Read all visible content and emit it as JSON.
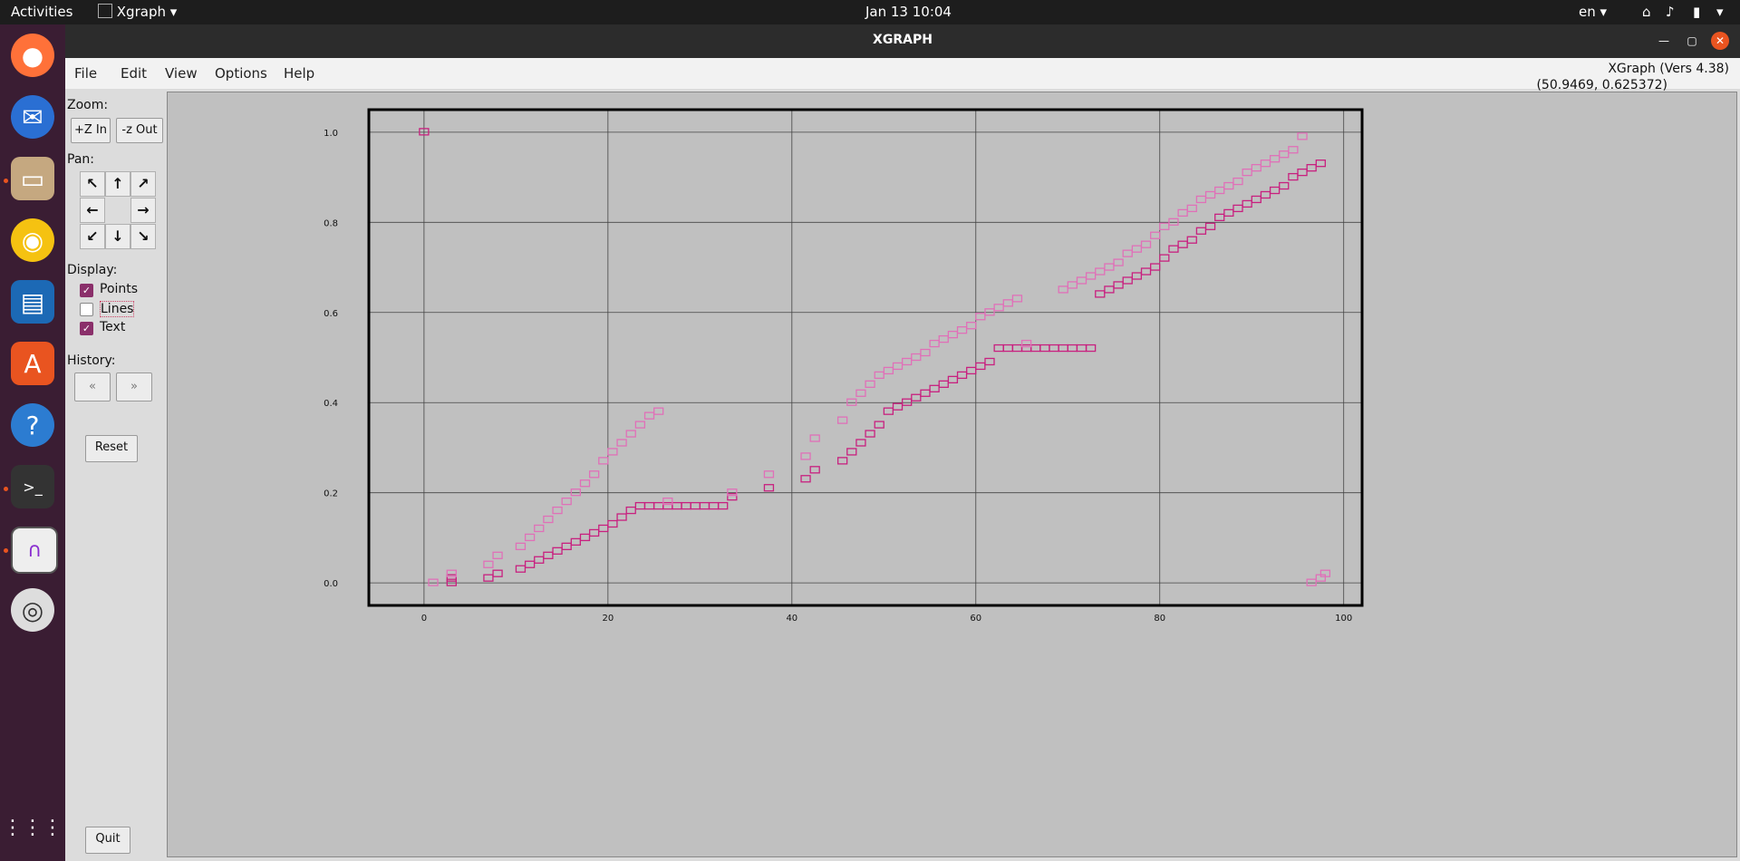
{
  "topbar": {
    "activities": "Activities",
    "app": "Xgraph",
    "datetime": "Jan 13  10:04",
    "lang": "en"
  },
  "window": {
    "title": "XGRAPH"
  },
  "menu": {
    "file": "File",
    "edit": "Edit",
    "view": "View",
    "options": "Options",
    "help": "Help"
  },
  "info": {
    "version": "XGraph (Vers 4.38)",
    "coords": "(50.9469, 0.625372)"
  },
  "sidebar": {
    "zoom_label": "Zoom:",
    "zoom_in": "+Z In",
    "zoom_out": "-z Out",
    "pan_label": "Pan:",
    "display_label": "Display:",
    "points": "Points",
    "lines": "Lines",
    "text": "Text",
    "points_checked": true,
    "lines_checked": false,
    "text_checked": true,
    "history_label": "History:",
    "reset": "Reset",
    "quit": "Quit"
  },
  "colors": {
    "series": "#d64fa6",
    "series_dark": "#c8207f"
  },
  "chart_data": {
    "type": "scatter",
    "xlim": [
      -6,
      102
    ],
    "ylim": [
      -0.05,
      1.05
    ],
    "xticks": [
      0,
      20,
      40,
      60,
      80,
      100
    ],
    "yticks": [
      "0.0",
      "0.2",
      "0.4",
      "0.6",
      "0.8",
      "1.0"
    ],
    "grid": true,
    "series": [
      {
        "color": "#c8207f",
        "points": [
          [
            0,
            1.0
          ],
          [
            3,
            0.0
          ],
          [
            3,
            0.01
          ],
          [
            7,
            0.01
          ],
          [
            8,
            0.02
          ],
          [
            10.5,
            0.03
          ],
          [
            11.5,
            0.04
          ],
          [
            12.5,
            0.05
          ],
          [
            13.5,
            0.06
          ],
          [
            14.5,
            0.07
          ],
          [
            15.5,
            0.08
          ],
          [
            16.5,
            0.09
          ],
          [
            17.5,
            0.1
          ],
          [
            18.5,
            0.11
          ],
          [
            19.5,
            0.12
          ],
          [
            20.5,
            0.13
          ],
          [
            21.5,
            0.145
          ],
          [
            22.5,
            0.16
          ],
          [
            23.5,
            0.17
          ],
          [
            24.5,
            0.17
          ],
          [
            25.5,
            0.17
          ],
          [
            26.5,
            0.17
          ],
          [
            27.5,
            0.17
          ],
          [
            28.5,
            0.17
          ],
          [
            29.5,
            0.17
          ],
          [
            30.5,
            0.17
          ],
          [
            31.5,
            0.17
          ],
          [
            32.5,
            0.17
          ],
          [
            33.5,
            0.19
          ],
          [
            37.5,
            0.21
          ],
          [
            41.5,
            0.23
          ],
          [
            42.5,
            0.25
          ],
          [
            45.5,
            0.27
          ],
          [
            46.5,
            0.29
          ],
          [
            47.5,
            0.31
          ],
          [
            48.5,
            0.33
          ],
          [
            49.5,
            0.35
          ],
          [
            50.5,
            0.38
          ],
          [
            51.5,
            0.39
          ],
          [
            52.5,
            0.4
          ],
          [
            53.5,
            0.41
          ],
          [
            54.5,
            0.42
          ],
          [
            55.5,
            0.43
          ],
          [
            56.5,
            0.44
          ],
          [
            57.5,
            0.45
          ],
          [
            58.5,
            0.46
          ],
          [
            59.5,
            0.47
          ],
          [
            60.5,
            0.48
          ],
          [
            61.5,
            0.49
          ],
          [
            62.5,
            0.52
          ],
          [
            63.5,
            0.52
          ],
          [
            64.5,
            0.52
          ],
          [
            65.5,
            0.52
          ],
          [
            66.5,
            0.52
          ],
          [
            67.5,
            0.52
          ],
          [
            68.5,
            0.52
          ],
          [
            69.5,
            0.52
          ],
          [
            70.5,
            0.52
          ],
          [
            71.5,
            0.52
          ],
          [
            72.5,
            0.52
          ],
          [
            73.5,
            0.64
          ],
          [
            74.5,
            0.65
          ],
          [
            75.5,
            0.66
          ],
          [
            76.5,
            0.67
          ],
          [
            77.5,
            0.68
          ],
          [
            78.5,
            0.69
          ],
          [
            79.5,
            0.7
          ],
          [
            80.5,
            0.72
          ],
          [
            81.5,
            0.74
          ],
          [
            82.5,
            0.75
          ],
          [
            83.5,
            0.76
          ],
          [
            84.5,
            0.78
          ],
          [
            85.5,
            0.79
          ],
          [
            86.5,
            0.81
          ],
          [
            87.5,
            0.82
          ],
          [
            88.5,
            0.83
          ],
          [
            89.5,
            0.84
          ],
          [
            90.5,
            0.85
          ],
          [
            91.5,
            0.86
          ],
          [
            92.5,
            0.87
          ],
          [
            93.5,
            0.88
          ],
          [
            94.5,
            0.9
          ],
          [
            95.5,
            0.91
          ],
          [
            96.5,
            0.92
          ],
          [
            97.5,
            0.93
          ]
        ]
      },
      {
        "color": "#e070b8",
        "points": [
          [
            1,
            0.0
          ],
          [
            3,
            0.02
          ],
          [
            7,
            0.04
          ],
          [
            8,
            0.06
          ],
          [
            10.5,
            0.08
          ],
          [
            11.5,
            0.1
          ],
          [
            12.5,
            0.12
          ],
          [
            13.5,
            0.14
          ],
          [
            14.5,
            0.16
          ],
          [
            15.5,
            0.18
          ],
          [
            16.5,
            0.2
          ],
          [
            17.5,
            0.22
          ],
          [
            18.5,
            0.24
          ],
          [
            19.5,
            0.27
          ],
          [
            20.5,
            0.29
          ],
          [
            21.5,
            0.31
          ],
          [
            22.5,
            0.33
          ],
          [
            23.5,
            0.35
          ],
          [
            24.5,
            0.37
          ],
          [
            25.5,
            0.38
          ],
          [
            26.5,
            0.18
          ],
          [
            33.5,
            0.2
          ],
          [
            37.5,
            0.24
          ],
          [
            41.5,
            0.28
          ],
          [
            42.5,
            0.32
          ],
          [
            45.5,
            0.36
          ],
          [
            46.5,
            0.4
          ],
          [
            47.5,
            0.42
          ],
          [
            48.5,
            0.44
          ],
          [
            49.5,
            0.46
          ],
          [
            50.5,
            0.47
          ],
          [
            51.5,
            0.48
          ],
          [
            52.5,
            0.49
          ],
          [
            53.5,
            0.5
          ],
          [
            54.5,
            0.51
          ],
          [
            55.5,
            0.53
          ],
          [
            56.5,
            0.54
          ],
          [
            57.5,
            0.55
          ],
          [
            58.5,
            0.56
          ],
          [
            59.5,
            0.57
          ],
          [
            60.5,
            0.59
          ],
          [
            61.5,
            0.6
          ],
          [
            62.5,
            0.61
          ],
          [
            63.5,
            0.62
          ],
          [
            64.5,
            0.63
          ],
          [
            65.5,
            0.53
          ],
          [
            69.5,
            0.65
          ],
          [
            70.5,
            0.66
          ],
          [
            71.5,
            0.67
          ],
          [
            72.5,
            0.68
          ],
          [
            73.5,
            0.69
          ],
          [
            74.5,
            0.7
          ],
          [
            75.5,
            0.71
          ],
          [
            76.5,
            0.73
          ],
          [
            77.5,
            0.74
          ],
          [
            78.5,
            0.75
          ],
          [
            79.5,
            0.77
          ],
          [
            80.5,
            0.79
          ],
          [
            81.5,
            0.8
          ],
          [
            82.5,
            0.82
          ],
          [
            83.5,
            0.83
          ],
          [
            84.5,
            0.85
          ],
          [
            85.5,
            0.86
          ],
          [
            86.5,
            0.87
          ],
          [
            87.5,
            0.88
          ],
          [
            88.5,
            0.89
          ],
          [
            89.5,
            0.91
          ],
          [
            90.5,
            0.92
          ],
          [
            91.5,
            0.93
          ],
          [
            92.5,
            0.94
          ],
          [
            93.5,
            0.95
          ],
          [
            94.5,
            0.96
          ],
          [
            95.5,
            0.99
          ],
          [
            96.5,
            0.0
          ],
          [
            97.5,
            0.01
          ],
          [
            98,
            0.02
          ]
        ]
      }
    ]
  }
}
